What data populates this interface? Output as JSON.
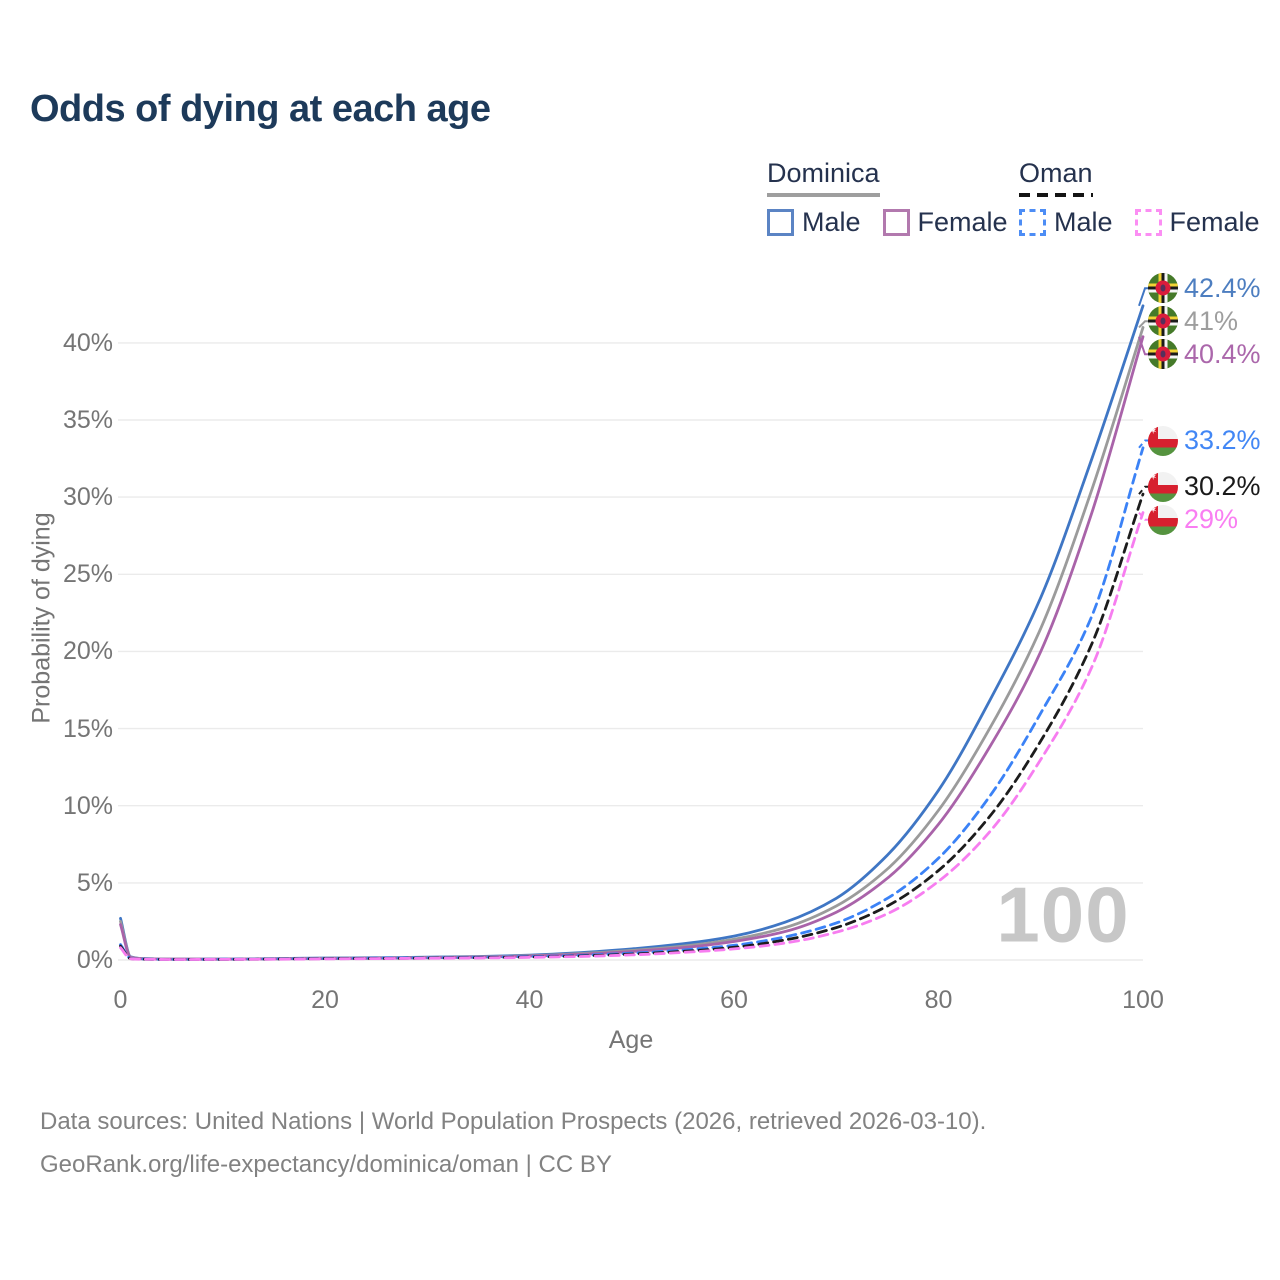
{
  "title": "Odds of dying at each age",
  "legend": {
    "dominica": "Dominica",
    "oman": "Oman",
    "male": "Male",
    "female": "Female"
  },
  "axes": {
    "ylabel": "Probability of dying",
    "xlabel": "Age",
    "y_tick_labels": [
      "0%",
      "5%",
      "10%",
      "15%",
      "20%",
      "25%",
      "30%",
      "35%",
      "40%"
    ],
    "y_tick_values": [
      0,
      5,
      10,
      15,
      20,
      25,
      30,
      35,
      40
    ],
    "x_tick_labels": [
      "0",
      "20",
      "40",
      "60",
      "80",
      "100"
    ],
    "x_tick_values": [
      0,
      20,
      40,
      60,
      80,
      100
    ]
  },
  "watermark": "100",
  "footer": {
    "line1": "Data sources: United Nations | World Population Prospects (2026, retrieved 2026-03-10).",
    "line2": "GeoRank.org/life-expectancy/dominica/oman | CC BY"
  },
  "colors": {
    "title_text": "#1d3a5a",
    "axis_text": "#757575",
    "grid": "#ebebeb",
    "watermark": "#c7c7c7",
    "legend_text": "#25324e",
    "footer_text": "#828282"
  },
  "chart_data": {
    "type": "line",
    "title": "Odds of dying at each age",
    "xlabel": "Age",
    "ylabel": "Probability of dying",
    "xlim": [
      0,
      100
    ],
    "ylim": [
      0,
      44
    ],
    "grid": "horizontal",
    "legend_position": "top-right",
    "ages": [
      0,
      1,
      2,
      5,
      10,
      15,
      20,
      25,
      30,
      35,
      40,
      45,
      50,
      55,
      60,
      65,
      70,
      75,
      80,
      85,
      90,
      95,
      100
    ],
    "series": [
      {
        "name": "Dominica Male",
        "country": "Dominica",
        "sex": "Male",
        "line_style": "solid",
        "color": "#3f76c4",
        "flag": "dominica",
        "end_label": "42.4%",
        "end_label_color": "#4d7ec0",
        "values_pct": [
          2.7,
          0.2,
          0.1,
          0.06,
          0.06,
          0.09,
          0.13,
          0.15,
          0.18,
          0.23,
          0.32,
          0.48,
          0.72,
          1.05,
          1.55,
          2.45,
          4.0,
          6.8,
          11.0,
          16.8,
          23.5,
          32.5,
          42.4
        ]
      },
      {
        "name": "Dominica Both sexes",
        "country": "Dominica",
        "sex": "Both",
        "line_style": "solid",
        "color": "#9b9b9b",
        "flag": "dominica",
        "end_label": "41%",
        "end_label_color": "#9e9e9e",
        "values_pct": [
          2.5,
          0.18,
          0.09,
          0.05,
          0.05,
          0.08,
          0.11,
          0.13,
          0.16,
          0.2,
          0.28,
          0.42,
          0.62,
          0.9,
          1.35,
          2.1,
          3.5,
          5.9,
          9.7,
          15.0,
          21.5,
          30.5,
          41.0
        ]
      },
      {
        "name": "Dominica Female",
        "country": "Dominica",
        "sex": "Female",
        "line_style": "solid",
        "color": "#a963a9",
        "flag": "dominica",
        "end_label": "40.4%",
        "end_label_color": "#ab67ab",
        "values_pct": [
          2.3,
          0.16,
          0.08,
          0.05,
          0.05,
          0.07,
          0.09,
          0.11,
          0.14,
          0.18,
          0.25,
          0.37,
          0.55,
          0.8,
          1.2,
          1.85,
          3.1,
          5.3,
          8.8,
          13.8,
          20.0,
          29.0,
          40.4
        ]
      },
      {
        "name": "Oman Male",
        "country": "Oman",
        "sex": "Male",
        "line_style": "dashed",
        "color": "#3b82f6",
        "flag": "oman",
        "end_label": "33.2%",
        "end_label_color": "#4287f5",
        "values_pct": [
          1.0,
          0.1,
          0.06,
          0.04,
          0.05,
          0.07,
          0.1,
          0.12,
          0.14,
          0.17,
          0.22,
          0.3,
          0.44,
          0.65,
          0.95,
          1.5,
          2.4,
          4.0,
          6.6,
          10.6,
          16.0,
          22.3,
          33.2
        ]
      },
      {
        "name": "Oman Both sexes",
        "country": "Oman",
        "sex": "Both",
        "line_style": "dashed",
        "color": "#1c1c1c",
        "flag": "oman",
        "end_label": "30.2%",
        "end_label_color": "#1a1a1a",
        "values_pct": [
          0.9,
          0.09,
          0.05,
          0.04,
          0.04,
          0.06,
          0.09,
          0.1,
          0.12,
          0.15,
          0.19,
          0.26,
          0.38,
          0.56,
          0.82,
          1.3,
          2.1,
          3.5,
          5.8,
          9.3,
          14.2,
          20.5,
          30.2
        ]
      },
      {
        "name": "Oman Female",
        "country": "Oman",
        "sex": "Female",
        "line_style": "dashed",
        "color": "#f77df0",
        "flag": "oman",
        "end_label": "29%",
        "end_label_color": "#f97ef2",
        "values_pct": [
          0.8,
          0.08,
          0.05,
          0.03,
          0.04,
          0.05,
          0.07,
          0.09,
          0.11,
          0.13,
          0.17,
          0.23,
          0.33,
          0.49,
          0.72,
          1.1,
          1.8,
          3.0,
          5.1,
          8.3,
          13.0,
          19.0,
          29.0
        ]
      }
    ]
  }
}
